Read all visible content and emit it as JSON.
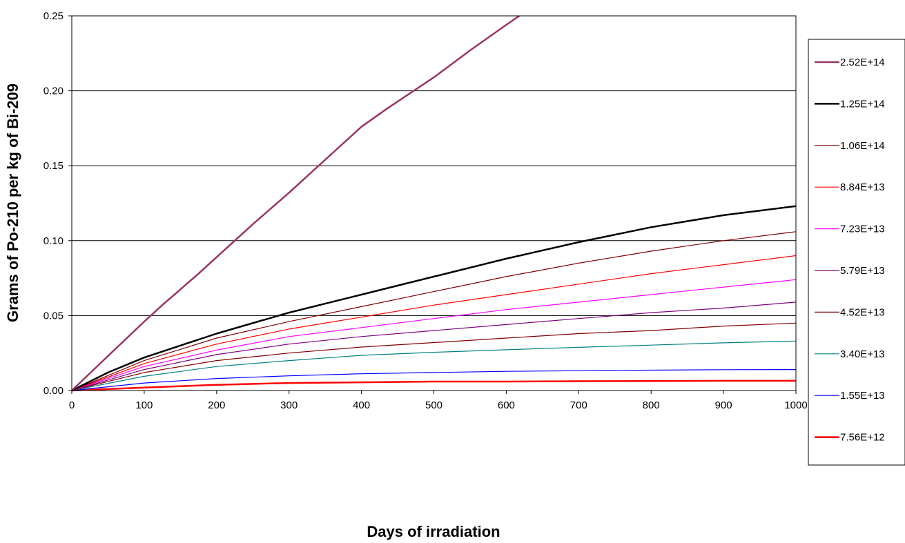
{
  "chart_data": {
    "type": "line",
    "title": "",
    "xlabel": "Days of irradiation",
    "ylabel": "Grams of Po-210 per kg of Bi-209",
    "xlim": [
      0,
      1000
    ],
    "ylim": [
      0,
      0.25
    ],
    "xticks": [
      "0",
      "100",
      "200",
      "300",
      "400",
      "500",
      "600",
      "700",
      "800",
      "900",
      "1000"
    ],
    "yticks": [
      "0.00",
      "0.05",
      "0.10",
      "0.15",
      "0.20",
      "0.25"
    ],
    "grid": "horizontal",
    "legend_position": "right",
    "series": [
      {
        "name": "2.52E+14",
        "color": "#993366",
        "width": 2.5,
        "points": [
          [
            0,
            0
          ],
          [
            50,
            0.023
          ],
          [
            100,
            0.046
          ],
          [
            125,
            0.057
          ],
          [
            175,
            0.078
          ],
          [
            200,
            0.089
          ],
          [
            250,
            0.111
          ],
          [
            300,
            0.132
          ],
          [
            350,
            0.154
          ],
          [
            375,
            0.165
          ],
          [
            400,
            0.176
          ],
          [
            435,
            0.188
          ],
          [
            500,
            0.209
          ],
          [
            550,
            0.227
          ],
          [
            600,
            0.244
          ],
          [
            618,
            0.25
          ]
        ]
      },
      {
        "name": "1.25E+14",
        "color": "#000000",
        "width": 2.5,
        "points": [
          [
            0,
            0
          ],
          [
            50,
            0.012
          ],
          [
            100,
            0.022
          ],
          [
            150,
            0.03
          ],
          [
            200,
            0.038
          ],
          [
            300,
            0.052
          ],
          [
            400,
            0.064
          ],
          [
            500,
            0.076
          ],
          [
            600,
            0.088
          ],
          [
            700,
            0.099
          ],
          [
            800,
            0.109
          ],
          [
            900,
            0.117
          ],
          [
            1000,
            0.123
          ]
        ]
      },
      {
        "name": "1.06E+14",
        "color": "#800000",
        "width": 1.2,
        "points": [
          [
            0,
            0
          ],
          [
            100,
            0.02
          ],
          [
            200,
            0.035
          ],
          [
            300,
            0.046
          ],
          [
            400,
            0.056
          ],
          [
            500,
            0.066
          ],
          [
            600,
            0.076
          ],
          [
            700,
            0.085
          ],
          [
            800,
            0.093
          ],
          [
            900,
            0.1
          ],
          [
            1000,
            0.106
          ]
        ]
      },
      {
        "name": "8.84E+13",
        "color": "#ff0000",
        "width": 1.2,
        "points": [
          [
            0,
            0
          ],
          [
            100,
            0.018
          ],
          [
            200,
            0.031
          ],
          [
            300,
            0.041
          ],
          [
            400,
            0.049
          ],
          [
            500,
            0.057
          ],
          [
            600,
            0.064
          ],
          [
            700,
            0.071
          ],
          [
            800,
            0.078
          ],
          [
            900,
            0.084
          ],
          [
            1000,
            0.09
          ]
        ]
      },
      {
        "name": "7.23E+13",
        "color": "#ff00ff",
        "width": 1.2,
        "points": [
          [
            0,
            0
          ],
          [
            100,
            0.016
          ],
          [
            200,
            0.027
          ],
          [
            300,
            0.036
          ],
          [
            400,
            0.042
          ],
          [
            500,
            0.048
          ],
          [
            600,
            0.054
          ],
          [
            700,
            0.059
          ],
          [
            800,
            0.064
          ],
          [
            900,
            0.069
          ],
          [
            1000,
            0.074
          ]
        ]
      },
      {
        "name": "5.79E+13",
        "color": "#800080",
        "width": 1.2,
        "points": [
          [
            0,
            0
          ],
          [
            100,
            0.014
          ],
          [
            200,
            0.024
          ],
          [
            300,
            0.031
          ],
          [
            400,
            0.036
          ],
          [
            500,
            0.04
          ],
          [
            600,
            0.044
          ],
          [
            700,
            0.048
          ],
          [
            800,
            0.052
          ],
          [
            900,
            0.055
          ],
          [
            1000,
            0.059
          ]
        ]
      },
      {
        "name": "4.52E+13",
        "color": "#800000",
        "width": 1.2,
        "points": [
          [
            0,
            0
          ],
          [
            100,
            0.012
          ],
          [
            200,
            0.02
          ],
          [
            300,
            0.025
          ],
          [
            400,
            0.029
          ],
          [
            500,
            0.032
          ],
          [
            600,
            0.035
          ],
          [
            700,
            0.038
          ],
          [
            800,
            0.04
          ],
          [
            900,
            0.043
          ],
          [
            1000,
            0.045
          ]
        ]
      },
      {
        "name": "3.40E+13",
        "color": "#008080",
        "width": 1.2,
        "points": [
          [
            0,
            0
          ],
          [
            100,
            0.0095
          ],
          [
            200,
            0.016
          ],
          [
            300,
            0.02
          ],
          [
            400,
            0.0235
          ],
          [
            500,
            0.0255
          ],
          [
            600,
            0.0272
          ],
          [
            700,
            0.0288
          ],
          [
            800,
            0.0303
          ],
          [
            900,
            0.0318
          ],
          [
            1000,
            0.033
          ]
        ]
      },
      {
        "name": "1.55E+13",
        "color": "#0000ff",
        "width": 1.2,
        "points": [
          [
            0,
            0
          ],
          [
            100,
            0.005
          ],
          [
            200,
            0.008
          ],
          [
            300,
            0.0098
          ],
          [
            400,
            0.0112
          ],
          [
            500,
            0.012
          ],
          [
            600,
            0.0128
          ],
          [
            700,
            0.0132
          ],
          [
            800,
            0.0136
          ],
          [
            900,
            0.0139
          ],
          [
            1000,
            0.014
          ]
        ]
      },
      {
        "name": "7.56E+12",
        "color": "#ff0000",
        "width": 2.5,
        "points": [
          [
            0,
            0
          ],
          [
            100,
            0.002
          ],
          [
            200,
            0.0038
          ],
          [
            300,
            0.005
          ],
          [
            400,
            0.0055
          ],
          [
            500,
            0.006
          ],
          [
            600,
            0.006
          ],
          [
            700,
            0.0062
          ],
          [
            800,
            0.0063
          ],
          [
            900,
            0.0065
          ],
          [
            1000,
            0.0065
          ]
        ]
      }
    ]
  }
}
